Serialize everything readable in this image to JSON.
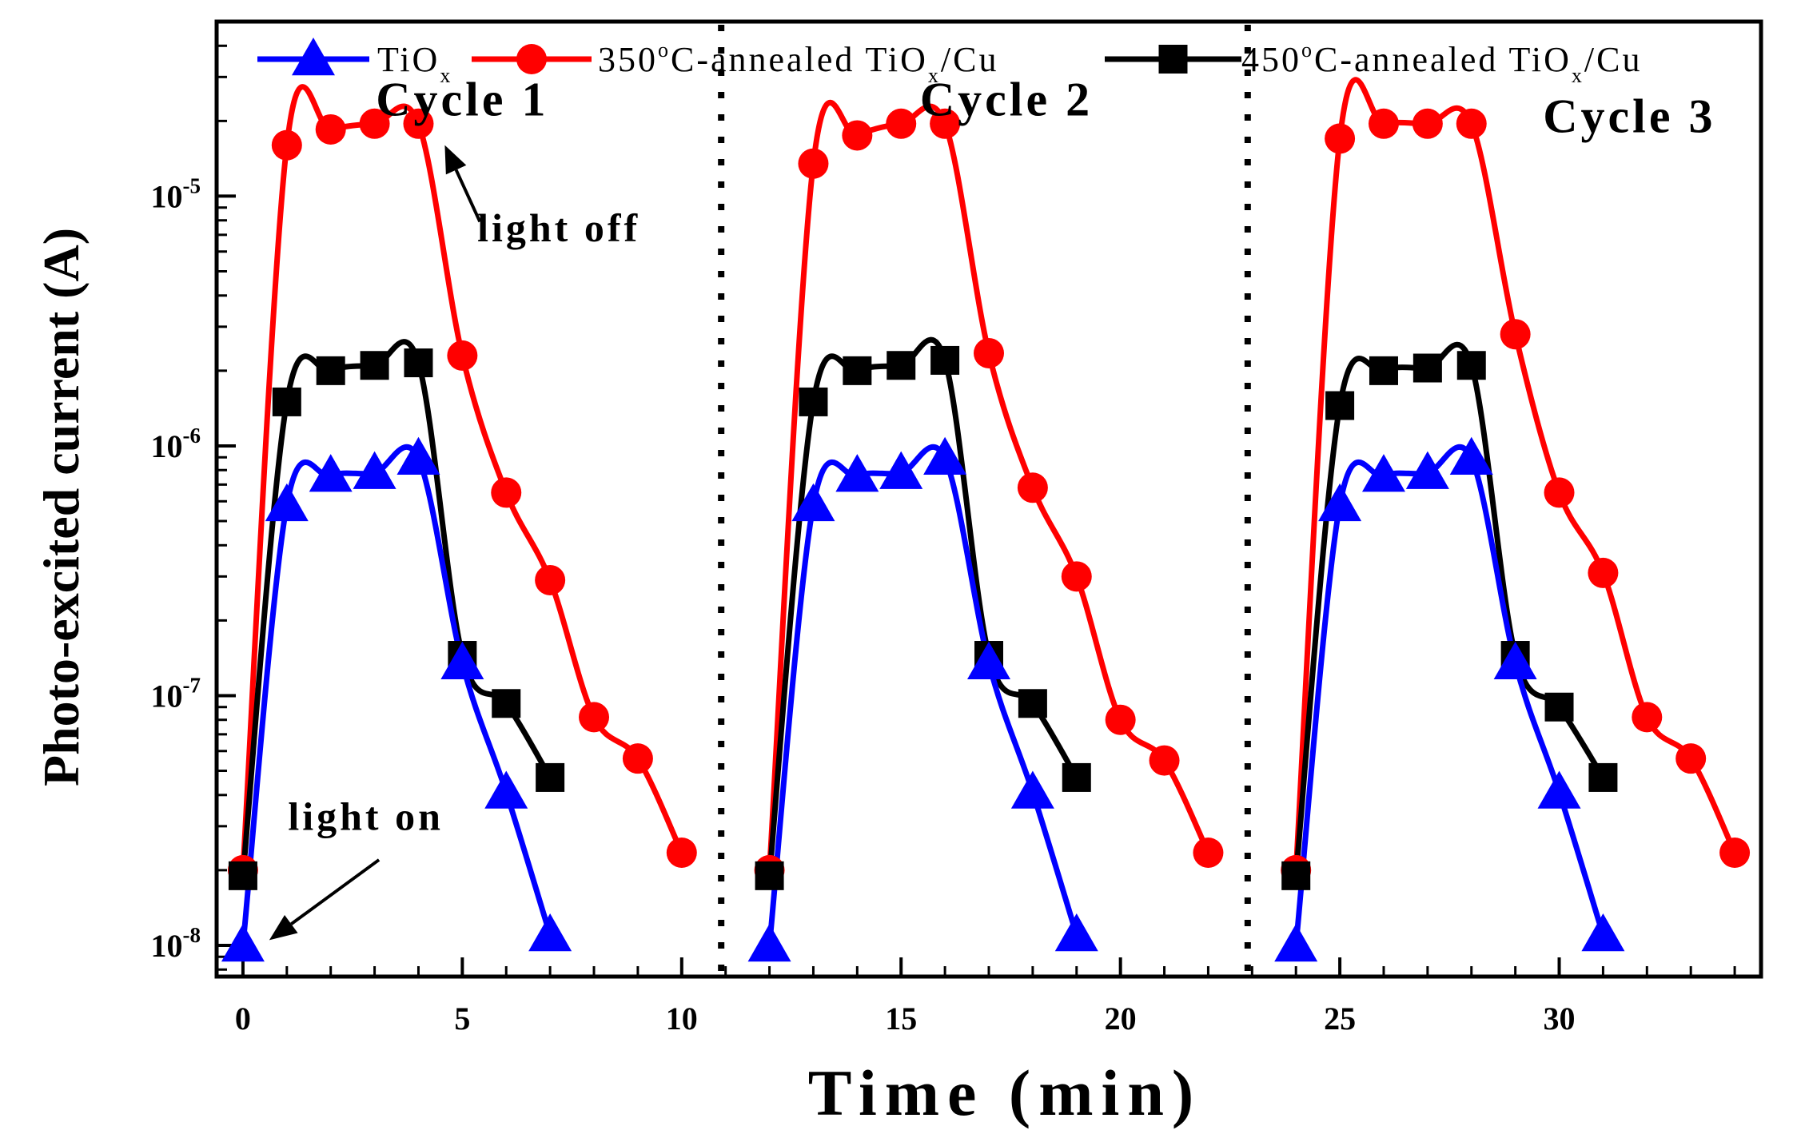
{
  "chart_data": {
    "type": "line",
    "title": "",
    "xlabel": "Time (min)",
    "ylabel": "Photo-excited current (A)",
    "xlim": [
      -0.6,
      34.6
    ],
    "ylim": [
      7.5e-09,
      5e-05
    ],
    "yscale": "log",
    "grid": false,
    "legend_position": "top",
    "x_ticks": [
      0,
      5,
      10,
      15,
      20,
      25,
      30
    ],
    "x_tick_labels": [
      "0",
      "5",
      "10",
      "15",
      "20",
      "25",
      "30"
    ],
    "y_ticks": [
      1e-08,
      1e-07,
      1e-06,
      1e-05
    ],
    "y_tick_labels": [
      {
        "base": "10",
        "exp": "-8"
      },
      {
        "base": "10",
        "exp": "-7"
      },
      {
        "base": "10",
        "exp": "-6"
      },
      {
        "base": "10",
        "exp": "-5"
      }
    ],
    "series": [
      {
        "name": "TiOx",
        "legend": {
          "main": "TiO",
          "sub": "x"
        },
        "color": "#0000ff",
        "marker": "triangle",
        "segments": [
          {
            "x": [
              0,
              1,
              2,
              3,
              4,
              5,
              6,
              7
            ],
            "y": [
              1e-08,
              5.8e-07,
              7.6e-07,
              7.8e-07,
              8.9e-07,
              1.35e-07,
              4.1e-08,
              1.1e-08
            ]
          },
          {
            "x": [
              12,
              13,
              14,
              15,
              16,
              17,
              18,
              19
            ],
            "y": [
              1e-08,
              5.8e-07,
              7.6e-07,
              7.8e-07,
              8.9e-07,
              1.35e-07,
              4.1e-08,
              1.1e-08
            ]
          },
          {
            "x": [
              24,
              25,
              26,
              27,
              28,
              29,
              30,
              31
            ],
            "y": [
              1e-08,
              5.8e-07,
              7.6e-07,
              7.8e-07,
              8.9e-07,
              1.35e-07,
              4.1e-08,
              1.1e-08
            ]
          }
        ]
      },
      {
        "name": "350oC-annealed TiOx/Cu",
        "legend": {
          "a": "350",
          "sup": "o",
          "b": "C-annealed TiO",
          "sub": "x",
          "c": "/Cu"
        },
        "color": "#ff0000",
        "marker": "circle",
        "segments": [
          {
            "x": [
              0,
              1,
              2,
              3,
              4,
              5,
              6,
              7,
              8,
              9,
              10
            ],
            "y": [
              2e-08,
              1.6e-05,
              1.85e-05,
              1.95e-05,
              1.95e-05,
              2.3e-06,
              6.5e-07,
              2.9e-07,
              8.2e-08,
              5.6e-08,
              2.35e-08
            ]
          },
          {
            "x": [
              12,
              13,
              14,
              15,
              16,
              17,
              18,
              19,
              20,
              21,
              22
            ],
            "y": [
              2e-08,
              1.35e-05,
              1.75e-05,
              1.95e-05,
              1.95e-05,
              2.35e-06,
              6.8e-07,
              3e-07,
              8e-08,
              5.5e-08,
              2.35e-08
            ]
          },
          {
            "x": [
              24,
              25,
              26,
              27,
              28,
              29,
              30,
              31,
              32,
              33,
              34
            ],
            "y": [
              2e-08,
              1.7e-05,
              1.95e-05,
              1.95e-05,
              1.95e-05,
              2.8e-06,
              6.5e-07,
              3.1e-07,
              8.2e-08,
              5.6e-08,
              2.35e-08
            ]
          }
        ]
      },
      {
        "name": "450oC-annealed TiOx/Cu",
        "legend": {
          "a": "450",
          "sup": "o",
          "b": "C-annealed TiO",
          "sub": "x",
          "c": "/Cu"
        },
        "color": "#000000",
        "marker": "square",
        "segments": [
          {
            "x": [
              0,
              1,
              2,
              3,
              4,
              5,
              6,
              7
            ],
            "y": [
              1.9e-08,
              1.5e-06,
              2e-06,
              2.1e-06,
              2.15e-06,
              1.45e-07,
              9.3e-08,
              4.7e-08
            ]
          },
          {
            "x": [
              12,
              13,
              14,
              15,
              16,
              17,
              18,
              19
            ],
            "y": [
              1.9e-08,
              1.5e-06,
              2e-06,
              2.1e-06,
              2.2e-06,
              1.45e-07,
              9.3e-08,
              4.7e-08
            ]
          },
          {
            "x": [
              24,
              25,
              26,
              27,
              28,
              29,
              30,
              31
            ],
            "y": [
              1.9e-08,
              1.45e-06,
              2e-06,
              2.05e-06,
              2.1e-06,
              1.45e-07,
              9e-08,
              4.7e-08
            ]
          }
        ]
      }
    ],
    "dividers_x": [
      10.9,
      22.9
    ],
    "annotations": {
      "cycles": [
        {
          "text": "Cycle 1",
          "x": 5.0,
          "y": 2.1e-05
        },
        {
          "text": "Cycle 2",
          "x": 17.4,
          "y": 2.1e-05
        },
        {
          "text": "Cycle 3",
          "x": 31.6,
          "y": 1.8e-05
        }
      ],
      "light_off": {
        "text": "light off",
        "x": 7.2,
        "y": 6.6e-06,
        "arrow_from": [
          5.4,
          7.9e-06
        ],
        "arrow_to": [
          4.6,
          1.6e-05
        ]
      },
      "light_on": {
        "text": "light on",
        "x": 2.8,
        "y": 2.9e-08,
        "arrow_from": [
          3.1,
          2.2e-08
        ],
        "arrow_to": [
          0.6,
          1.05e-08
        ]
      }
    }
  }
}
